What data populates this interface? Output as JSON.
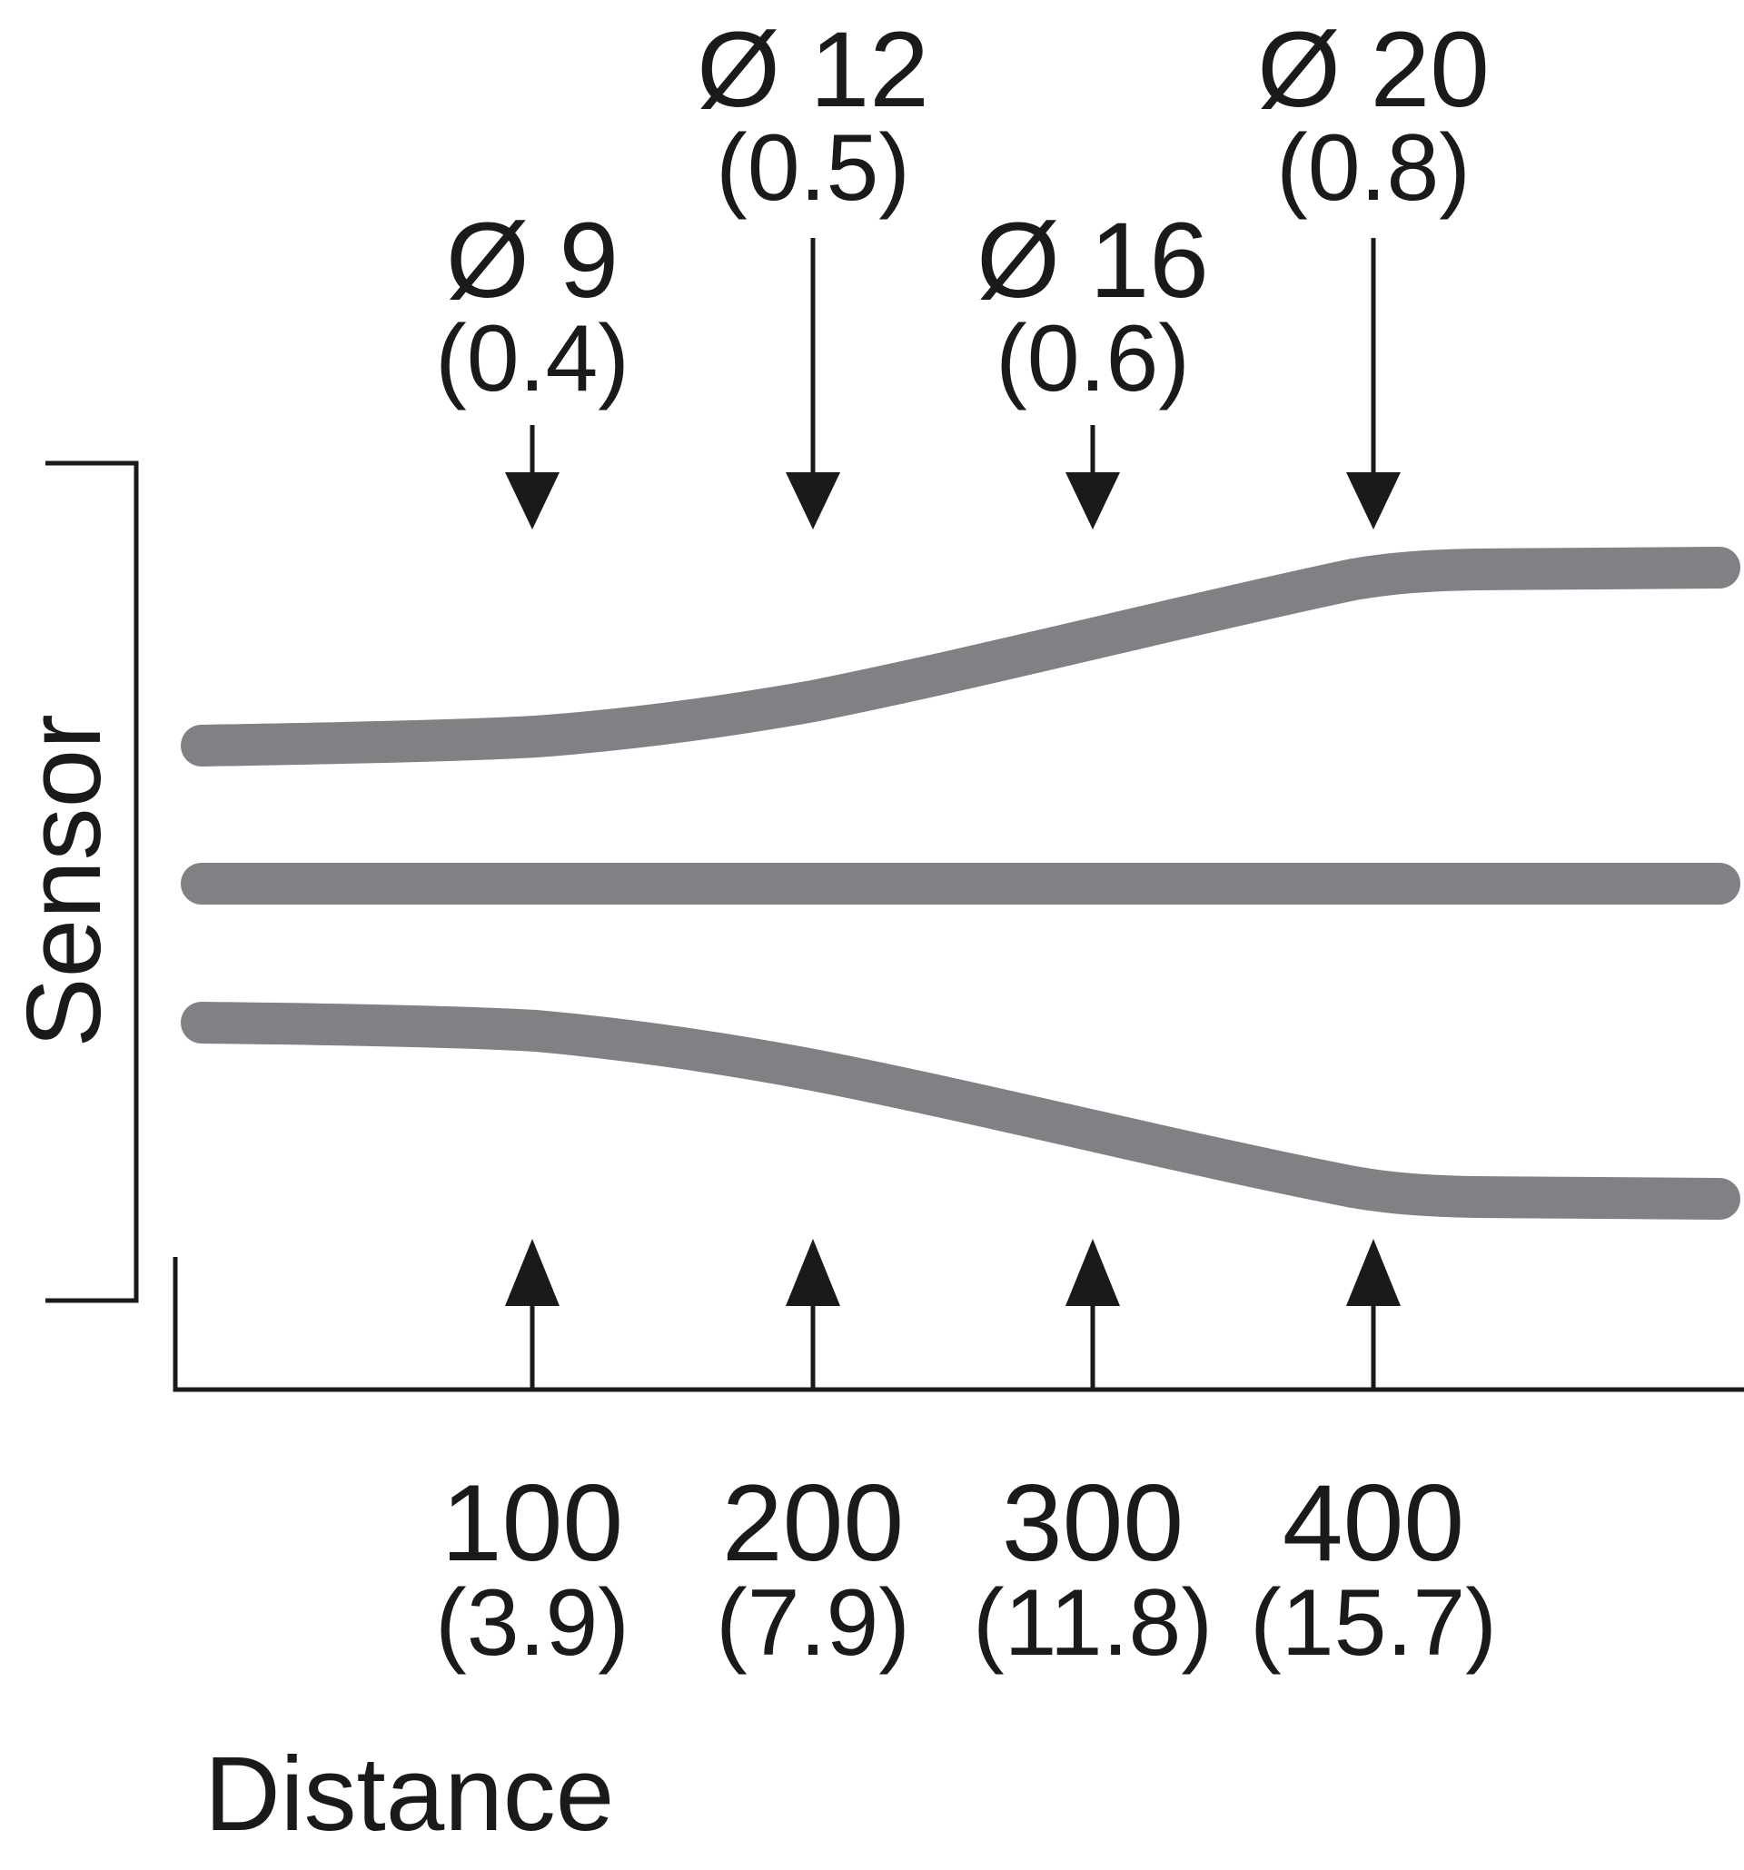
{
  "colors": {
    "beam": "#808184",
    "ink": "#1a1a1a",
    "background": "#ffffff"
  },
  "labels": {
    "sensor": "Sensor",
    "distance": "Distance"
  },
  "spot_diameters": [
    {
      "diameter": "Ø 9",
      "inch": "(0.4)"
    },
    {
      "diameter": "Ø 12",
      "inch": "(0.5)"
    },
    {
      "diameter": "Ø 16",
      "inch": "(0.6)"
    },
    {
      "diameter": "Ø 20",
      "inch": "(0.8)"
    }
  ],
  "distances": [
    {
      "mm": "100",
      "inch": "(3.9)"
    },
    {
      "mm": "200",
      "inch": "(7.9)"
    },
    {
      "mm": "300",
      "inch": "(11.8)"
    },
    {
      "mm": "400",
      "inch": "(15.7)"
    }
  ]
}
